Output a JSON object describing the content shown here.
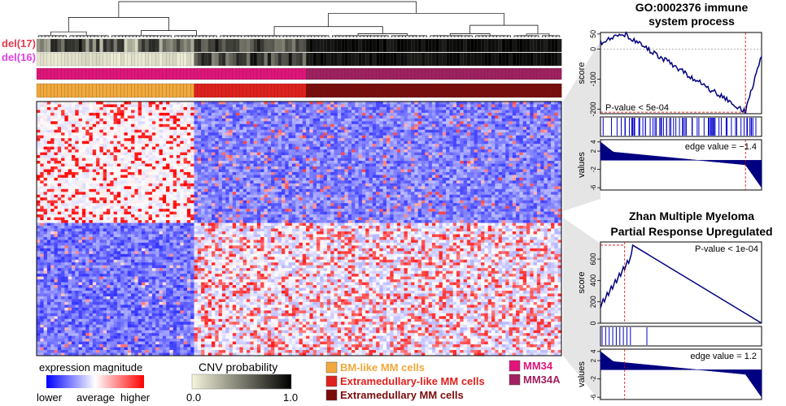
{
  "chart_data": [
    {
      "type": "heatmap",
      "title": "",
      "row_labels": [
        "del(17)",
        "del(16)"
      ],
      "row_label_colors": [
        "#e23a50",
        "#e040e8"
      ],
      "column_groups": [
        {
          "name": "BM-like MM cells",
          "color": "#f2a93b",
          "n_cells": 45
        },
        {
          "name": "Extramedullary-like MM cells",
          "color": "#e0201c",
          "n_cells": 32
        },
        {
          "name": "Extramedullary MM cells",
          "color": "#7a0c0c",
          "n_cells": 73
        }
      ],
      "samples": [
        {
          "name": "MM34",
          "color": "#e0147a"
        },
        {
          "name": "MM34A",
          "color": "#a02060"
        }
      ],
      "expression_legend": {
        "title": "expression magnitude",
        "ticks": [
          "lower",
          "average",
          "higher"
        ],
        "colors": [
          "#0000ff",
          "#ffffff",
          "#ff0000"
        ]
      },
      "cnv_legend": {
        "title": "CNV probability",
        "ticks": [
          "0.0",
          "1.0"
        ],
        "colors": [
          "#f5f5dc",
          "#000000"
        ]
      }
    },
    {
      "type": "line",
      "title": "GO:0002376 immune system process",
      "title_lines": [
        "GO:0002376 immune",
        "system process"
      ],
      "ylabel": "score",
      "yticks": [
        50,
        0,
        -100,
        -200
      ],
      "ylim": [
        -215,
        55
      ],
      "annotation": "P-value < 5e-04",
      "edge_fraction": 0.9,
      "values_panel": {
        "ylabel": "values",
        "yticks": [
          4,
          2,
          -2,
          -6
        ],
        "ylim": [
          -6.5,
          4.5
        ],
        "annotation": "edge value = −1.4"
      }
    },
    {
      "type": "line",
      "title": "Zhan Multiple Myeloma Partial Response Upregulated",
      "title_lines": [
        "Zhan Multiple Myeloma",
        "Partial Response Upregulated"
      ],
      "ylabel": "score",
      "yticks": [
        600,
        400,
        200,
        0
      ],
      "ylim": [
        0,
        760
      ],
      "annotation": "P-value < 1e-04",
      "edge_fraction": 0.15,
      "values_panel": {
        "ylabel": "values",
        "yticks": [
          4,
          2,
          -2,
          -6
        ],
        "ylim": [
          -6.5,
          4.5
        ],
        "annotation": "edge value = 1.2"
      }
    }
  ]
}
